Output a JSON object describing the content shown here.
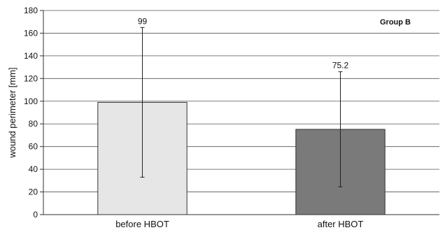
{
  "chart_data": {
    "type": "bar",
    "categories": [
      "before HBOT",
      "after HBOT"
    ],
    "values": [
      99,
      75.2
    ],
    "error_bars": [
      {
        "low": 33,
        "high": 165
      },
      {
        "low": 24.5,
        "high": 126
      }
    ],
    "data_labels": [
      "99",
      "75.2"
    ],
    "bar_colors": [
      "#e6e6e6",
      "#7a7a7a"
    ],
    "title": "",
    "panel_label": "Group B",
    "xlabel": "",
    "ylabel": "wound perimeter [mm]",
    "ylim": [
      0,
      180
    ],
    "yticks": [
      0,
      20,
      40,
      60,
      80,
      100,
      120,
      140,
      160,
      180
    ],
    "grid": true
  }
}
